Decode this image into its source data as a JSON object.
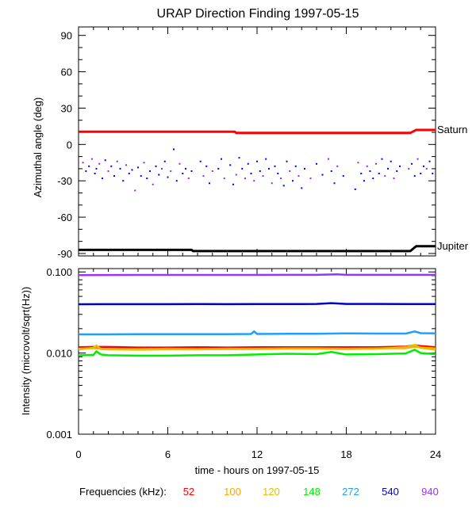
{
  "chart_data": [
    {
      "type": "line",
      "title": "URAP Direction Finding  1997-05-15",
      "ylabel": "Azimuthal angle (deg)",
      "xlim": [
        0,
        24
      ],
      "ylim": [
        -92,
        97
      ],
      "yticks": [
        "90",
        "60",
        "30",
        "0",
        "-30",
        "-60",
        "-90"
      ],
      "series": [
        {
          "name": "Saturn",
          "color": "#ff0000",
          "x": [
            0,
            10.5,
            10.6,
            22.3,
            22.7,
            24
          ],
          "values": [
            10.5,
            10.5,
            9.5,
            9.5,
            12,
            12
          ]
        },
        {
          "name": "Jupiter",
          "color": "#000000",
          "x": [
            0,
            7.6,
            7.7,
            22.3,
            22.7,
            24
          ],
          "values": [
            -87,
            -87,
            -88,
            -88,
            -84,
            -84
          ]
        }
      ],
      "scatter": {
        "colors": [
          "#0000ff",
          "#8a2be2"
        ],
        "x": [
          0.3,
          0.5,
          0.7,
          0.9,
          1.1,
          1.2,
          1.4,
          1.6,
          1.8,
          2.0,
          2.2,
          2.4,
          2.6,
          2.8,
          3.0,
          3.2,
          3.4,
          3.6,
          3.8,
          4.0,
          4.2,
          4.4,
          4.6,
          4.8,
          5.0,
          5.2,
          5.4,
          5.6,
          5.8,
          6.0,
          6.2,
          6.4,
          6.6,
          6.8,
          7.0,
          7.2,
          7.4,
          7.6,
          8.2,
          8.4,
          8.6,
          8.8,
          9.0,
          9.4,
          9.6,
          9.8,
          10.2,
          10.4,
          10.6,
          10.8,
          11.0,
          11.2,
          11.4,
          11.6,
          11.8,
          12.0,
          12.2,
          12.4,
          12.6,
          12.8,
          13.0,
          13.2,
          13.4,
          13.6,
          13.8,
          14.0,
          14.2,
          14.4,
          14.6,
          14.8,
          15.0,
          15.2,
          15.6,
          16.0,
          16.4,
          16.8,
          17.0,
          17.2,
          17.4,
          17.8,
          18.6,
          18.8,
          19.0,
          19.2,
          19.4,
          19.6,
          19.8,
          20.0,
          20.2,
          20.4,
          20.6,
          20.8,
          21.0,
          21.2,
          21.4,
          21.6,
          22.2,
          22.4,
          22.6,
          22.8,
          23.0,
          23.2,
          23.4,
          23.6,
          23.8
        ],
        "values": [
          -15,
          -22,
          -18,
          -12,
          -24,
          -20,
          -16,
          -28,
          -13,
          -22,
          -18,
          -26,
          -14,
          -20,
          -30,
          -17,
          -24,
          -21,
          -38,
          -19,
          -26,
          -15,
          -28,
          -22,
          -33,
          -18,
          -25,
          -20,
          -14,
          -27,
          -22,
          -4,
          -30,
          -16,
          -24,
          -20,
          -28,
          -22,
          -14,
          -26,
          -18,
          -32,
          -22,
          -20,
          -12,
          -28,
          -17,
          -33,
          -25,
          -11,
          -20,
          -28,
          -16,
          -24,
          -30,
          -14,
          -22,
          -26,
          -12,
          -20,
          -32,
          -18,
          -24,
          -28,
          -34,
          -14,
          -22,
          -30,
          -18,
          -26,
          -36,
          -20,
          -28,
          -16,
          -25,
          -12,
          -22,
          -32,
          -18,
          -26,
          -37,
          -15,
          -24,
          -30,
          -18,
          -22,
          -28,
          -16,
          -24,
          -12,
          -26,
          -20,
          -14,
          -28,
          -22,
          -18,
          -20,
          -16,
          -26,
          -12,
          -24,
          -18,
          -20,
          -14,
          -24
        ]
      }
    },
    {
      "type": "line",
      "ylabel": "Intensity (microvolt/sqrt(Hz))",
      "xlabel": "time - hours on 1997-05-15",
      "xlim": [
        0,
        24
      ],
      "ylim": [
        0.001,
        0.11
      ],
      "yscale": "log",
      "xticks": [
        "0",
        "6",
        "12",
        "18",
        "24"
      ],
      "yticks": [
        "0.100",
        "0.010",
        "0.001"
      ],
      "legend_title": "Frequencies (kHz):",
      "series": [
        {
          "name": "52",
          "color": "#ff0000",
          "x": [
            0,
            1,
            2,
            4,
            6,
            8,
            10,
            12,
            14,
            16,
            18,
            20,
            22,
            22.6,
            23,
            24
          ],
          "values": [
            0.0118,
            0.0119,
            0.0119,
            0.0117,
            0.0117,
            0.0118,
            0.0117,
            0.0118,
            0.0118,
            0.0118,
            0.0118,
            0.0118,
            0.012,
            0.0125,
            0.0122,
            0.0118
          ]
        },
        {
          "name": "100",
          "color": "#ffa500",
          "x": [
            0,
            1,
            2,
            4,
            6,
            8,
            10,
            12,
            14,
            16,
            18,
            20,
            22,
            22.6,
            23,
            24
          ],
          "values": [
            0.0113,
            0.0115,
            0.0112,
            0.0112,
            0.0113,
            0.0112,
            0.0113,
            0.0113,
            0.0114,
            0.0114,
            0.0113,
            0.0114,
            0.0115,
            0.012,
            0.0117,
            0.0114
          ]
        },
        {
          "name": "120",
          "color": "#e0c000",
          "x": [
            0,
            1,
            1.2,
            1.5,
            2,
            4,
            6,
            8,
            10,
            12,
            14,
            16,
            18,
            20,
            22,
            22.6,
            23,
            24
          ],
          "values": [
            0.0111,
            0.0116,
            0.0124,
            0.0112,
            0.0111,
            0.011,
            0.0111,
            0.0111,
            0.0112,
            0.0112,
            0.0113,
            0.0113,
            0.0112,
            0.0113,
            0.0118,
            0.0126,
            0.0116,
            0.011
          ]
        },
        {
          "name": "148",
          "color": "#00ee00",
          "x": [
            0,
            1,
            1.2,
            1.5,
            2,
            4,
            6,
            8,
            10,
            12,
            14,
            16,
            17,
            18,
            20,
            22,
            22.6,
            23,
            24
          ],
          "values": [
            0.0094,
            0.0095,
            0.0105,
            0.0096,
            0.0094,
            0.0093,
            0.0093,
            0.0094,
            0.0094,
            0.0096,
            0.0098,
            0.0097,
            0.0103,
            0.0096,
            0.0097,
            0.0099,
            0.011,
            0.01,
            0.0097
          ]
        },
        {
          "name": "272",
          "color": "#1e9fff",
          "x": [
            0,
            2,
            4,
            6,
            8,
            10,
            11.6,
            11.8,
            12,
            14,
            16,
            18,
            20,
            22,
            22.6,
            23,
            24
          ],
          "values": [
            0.017,
            0.017,
            0.0171,
            0.0171,
            0.0171,
            0.0171,
            0.0172,
            0.0185,
            0.0172,
            0.0173,
            0.0173,
            0.0175,
            0.0174,
            0.0174,
            0.0185,
            0.0176,
            0.0175
          ]
        },
        {
          "name": "540",
          "color": "#0000cc",
          "x": [
            0,
            2,
            4,
            6,
            8,
            10,
            12,
            14,
            16,
            17,
            18,
            20,
            22,
            24
          ],
          "values": [
            0.04,
            0.0401,
            0.0401,
            0.0401,
            0.0402,
            0.0401,
            0.0402,
            0.0402,
            0.0403,
            0.0412,
            0.0403,
            0.0403,
            0.0402,
            0.0402
          ]
        },
        {
          "name": "940",
          "color": "#9933ff",
          "x": [
            0,
            2,
            4,
            6,
            8,
            10,
            12,
            14,
            16,
            17.4,
            18,
            20,
            22,
            24
          ],
          "values": [
            0.0915,
            0.0916,
            0.0918,
            0.0919,
            0.0919,
            0.092,
            0.092,
            0.0921,
            0.0922,
            0.0935,
            0.0922,
            0.0922,
            0.0921,
            0.0921
          ]
        }
      ]
    }
  ]
}
